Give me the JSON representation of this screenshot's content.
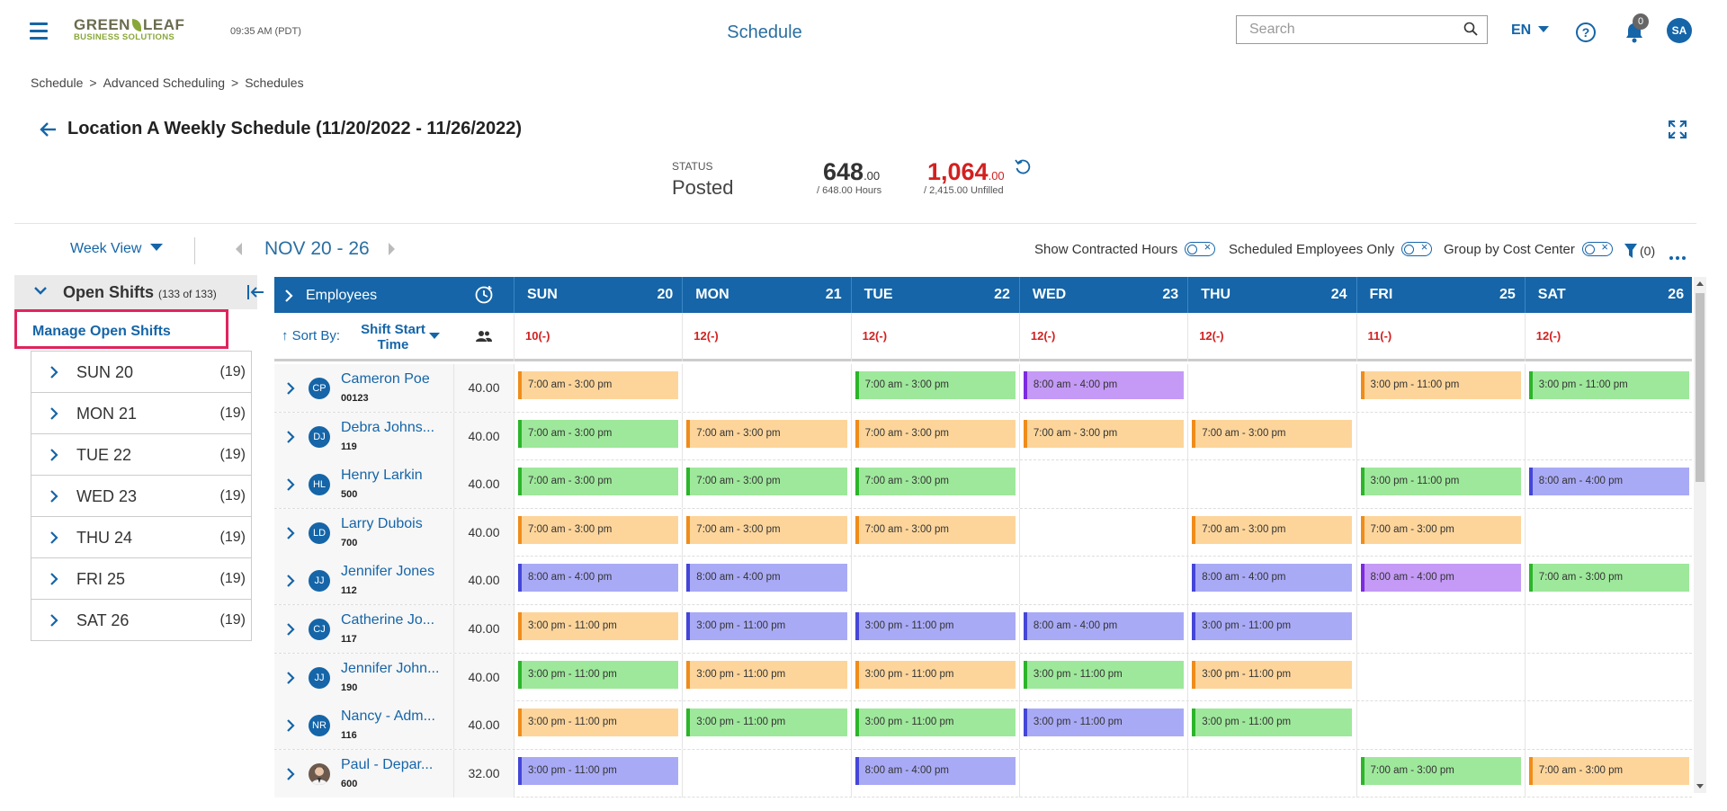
{
  "header": {
    "logo_main_left": "GREEN",
    "logo_main_right": "LEAF",
    "logo_sub": "BUSINESS SOLUTIONS",
    "time": "09:35 AM (PDT)",
    "title": "Schedule",
    "search_placeholder": "Search",
    "language": "EN",
    "notification_count": "0",
    "user_initials": "SA"
  },
  "breadcrumb": [
    "Schedule",
    "Advanced Scheduling",
    "Schedules"
  ],
  "schedule": {
    "title": "Location A Weekly Schedule (11/20/2022 - 11/26/2022)",
    "status_label": "STATUS",
    "status_value": "Posted",
    "hours_main": "648",
    "hours_decimal": ".00",
    "hours_sub": "/ 648.00 Hours",
    "unfilled_main": "1,064",
    "unfilled_decimal": ".00",
    "unfilled_sub": "/ 2,415.00 Unfilled"
  },
  "toolbar": {
    "view_label": "Week View",
    "week_range": "NOV 20 - 26",
    "show_contracted": "Show Contracted Hours",
    "scheduled_only": "Scheduled Employees Only",
    "group_by": "Group by Cost Center",
    "filter_count": "(0)"
  },
  "open_shifts": {
    "title": "Open Shifts",
    "count": "(133 of 133)",
    "manage_label": "Manage Open Shifts",
    "days": [
      {
        "label": "SUN 20",
        "count": "(19)"
      },
      {
        "label": "MON 21",
        "count": "(19)"
      },
      {
        "label": "TUE 22",
        "count": "(19)"
      },
      {
        "label": "WED 23",
        "count": "(19)"
      },
      {
        "label": "THU 24",
        "count": "(19)"
      },
      {
        "label": "FRI 25",
        "count": "(19)"
      },
      {
        "label": "SAT 26",
        "count": "(19)"
      }
    ]
  },
  "grid": {
    "employees_label": "Employees",
    "sort_by_label": "Sort By:",
    "sort_field": "Shift Start Time",
    "days": [
      {
        "name": "SUN",
        "date": "20",
        "open": "10(-)"
      },
      {
        "name": "MON",
        "date": "21",
        "open": "12(-)"
      },
      {
        "name": "TUE",
        "date": "22",
        "open": "12(-)"
      },
      {
        "name": "WED",
        "date": "23",
        "open": "12(-)"
      },
      {
        "name": "THU",
        "date": "24",
        "open": "12(-)"
      },
      {
        "name": "FRI",
        "date": "25",
        "open": "11(-)"
      },
      {
        "name": "SAT",
        "date": "26",
        "open": "12(-)"
      }
    ],
    "rows": [
      {
        "initials": "CP",
        "name": "Cameron Poe",
        "id": "00123",
        "hours": "40.00",
        "shifts": [
          {
            "t": "7:00 am - 3:00 pm",
            "c": "orange"
          },
          null,
          {
            "t": "7:00 am - 3:00 pm",
            "c": "green"
          },
          {
            "t": "8:00 am - 4:00 pm",
            "c": "purple"
          },
          null,
          {
            "t": "3:00 pm - 11:00 pm",
            "c": "orange"
          },
          {
            "t": "3:00 pm - 11:00 pm",
            "c": "green"
          }
        ]
      },
      {
        "initials": "DJ",
        "name": "Debra Johns...",
        "id": "119",
        "hours": "40.00",
        "shifts": [
          {
            "t": "7:00 am - 3:00 pm",
            "c": "green"
          },
          {
            "t": "7:00 am - 3:00 pm",
            "c": "orange"
          },
          {
            "t": "7:00 am - 3:00 pm",
            "c": "orange"
          },
          {
            "t": "7:00 am - 3:00 pm",
            "c": "orange"
          },
          {
            "t": "7:00 am - 3:00 pm",
            "c": "orange"
          },
          null,
          null
        ]
      },
      {
        "initials": "HL",
        "name": "Henry Larkin",
        "id": "500",
        "hours": "40.00",
        "shifts": [
          {
            "t": "7:00 am - 3:00 pm",
            "c": "green"
          },
          {
            "t": "7:00 am - 3:00 pm",
            "c": "green"
          },
          {
            "t": "7:00 am - 3:00 pm",
            "c": "green"
          },
          null,
          null,
          {
            "t": "3:00 pm - 11:00 pm",
            "c": "green"
          },
          {
            "t": "8:00 am - 4:00 pm",
            "c": "blue"
          }
        ]
      },
      {
        "initials": "LD",
        "name": "Larry Dubois",
        "id": "700",
        "hours": "40.00",
        "shifts": [
          {
            "t": "7:00 am - 3:00 pm",
            "c": "orange"
          },
          {
            "t": "7:00 am - 3:00 pm",
            "c": "orange"
          },
          {
            "t": "7:00 am - 3:00 pm",
            "c": "orange"
          },
          null,
          {
            "t": "7:00 am - 3:00 pm",
            "c": "orange"
          },
          {
            "t": "7:00 am - 3:00 pm",
            "c": "orange"
          },
          null
        ]
      },
      {
        "initials": "JJ",
        "name": "Jennifer Jones",
        "id": "112",
        "hours": "40.00",
        "shifts": [
          {
            "t": "8:00 am - 4:00 pm",
            "c": "blue"
          },
          {
            "t": "8:00 am - 4:00 pm",
            "c": "blue"
          },
          null,
          null,
          {
            "t": "8:00 am - 4:00 pm",
            "c": "blue"
          },
          {
            "t": "8:00 am - 4:00 pm",
            "c": "purple"
          },
          {
            "t": "7:00 am - 3:00 pm",
            "c": "green"
          }
        ]
      },
      {
        "initials": "CJ",
        "name": "Catherine Jo...",
        "id": "117",
        "hours": "40.00",
        "shifts": [
          {
            "t": "3:00 pm - 11:00 pm",
            "c": "orange"
          },
          {
            "t": "3:00 pm - 11:00 pm",
            "c": "blue"
          },
          {
            "t": "3:00 pm - 11:00 pm",
            "c": "blue"
          },
          {
            "t": "8:00 am - 4:00 pm",
            "c": "blue"
          },
          {
            "t": "3:00 pm - 11:00 pm",
            "c": "blue"
          },
          null,
          null
        ]
      },
      {
        "initials": "JJ",
        "name": "Jennifer John...",
        "id": "190",
        "hours": "40.00",
        "shifts": [
          {
            "t": "3:00 pm - 11:00 pm",
            "c": "green"
          },
          {
            "t": "3:00 pm - 11:00 pm",
            "c": "orange"
          },
          {
            "t": "3:00 pm - 11:00 pm",
            "c": "orange"
          },
          {
            "t": "3:00 pm - 11:00 pm",
            "c": "green"
          },
          {
            "t": "3:00 pm - 11:00 pm",
            "c": "orange"
          },
          null,
          null
        ]
      },
      {
        "initials": "NR",
        "name": "Nancy - Adm...",
        "id": "116",
        "hours": "40.00",
        "shifts": [
          {
            "t": "3:00 pm - 11:00 pm",
            "c": "orange"
          },
          {
            "t": "3:00 pm - 11:00 pm",
            "c": "green"
          },
          {
            "t": "3:00 pm - 11:00 pm",
            "c": "green"
          },
          {
            "t": "3:00 pm - 11:00 pm",
            "c": "blue"
          },
          {
            "t": "3:00 pm - 11:00 pm",
            "c": "green"
          },
          null,
          null
        ]
      },
      {
        "initials": "",
        "photo": true,
        "name": "Paul - Depar...",
        "id": "600",
        "hours": "32.00",
        "shifts": [
          {
            "t": "3:00 pm - 11:00 pm",
            "c": "blue"
          },
          null,
          {
            "t": "8:00 am - 4:00 pm",
            "c": "blue"
          },
          null,
          null,
          {
            "t": "7:00 am - 3:00 pm",
            "c": "green"
          },
          {
            "t": "7:00 am - 3:00 pm",
            "c": "orange"
          }
        ]
      }
    ]
  }
}
